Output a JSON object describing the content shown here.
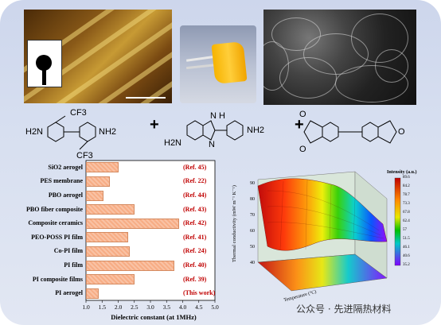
{
  "chemistry": {
    "monomer1": {
      "top": "CF3",
      "bottom": "CF3",
      "left": "H2N",
      "right": "NH2"
    },
    "monomer2": {
      "left": "H2N",
      "right": "NH2",
      "nh": "N\nH",
      "n": "N"
    },
    "monomer3": {
      "o": "O"
    }
  },
  "chart_data": {
    "type": "bar",
    "orientation": "horizontal",
    "categories": [
      "SiO2 aerogel",
      "PES membrane",
      "PBO aerogel",
      "PBO fiber composite",
      "Composite ceramics",
      "PEO-POSS PI film",
      "Co-PI film",
      "PI film",
      "PI composite films",
      "PI aerogel"
    ],
    "values": [
      2.0,
      1.75,
      1.55,
      2.5,
      3.9,
      2.3,
      2.35,
      3.75,
      2.5,
      1.4
    ],
    "annotations": [
      "(Ref. 45)",
      "(Ref. 22)",
      "(Ref. 44)",
      "(Ref. 43)",
      "(Ref. 42)",
      "(Ref. 41)",
      "(Ref. 24)",
      "(Ref. 40)",
      "(Ref. 39)",
      "(This work)"
    ],
    "xlabel": "Dielectric constant (at 1MHz)",
    "xlim": [
      1.0,
      5.0
    ],
    "xticks": [
      "1.0",
      "1.5",
      "2.0",
      "2.5",
      "3.0",
      "3.5",
      "4.0",
      "4.5",
      "5.0"
    ],
    "bar_color": "#f7ad85",
    "annotation_color": "#c00000"
  },
  "surface_plot": {
    "zlabel": "Thermal conductivity (mW m⁻¹ K⁻¹)",
    "xlabel": "Temperature (°C)",
    "colorbar_title": "Intensity (a.u.)",
    "colorbar_ticks": [
      "89.6",
      "84.2",
      "78.7",
      "73.3",
      "67.8",
      "62.4",
      "57",
      "51.5",
      "46.1",
      "40.6",
      "35.2"
    ],
    "z_ticks": [
      "90",
      "80",
      "70",
      "60",
      "50",
      "40"
    ],
    "colors": [
      "#c00000",
      "#ff0000",
      "#ff8c00",
      "#ffff00",
      "#00c000",
      "#00ffff",
      "#0000ff",
      "#7f00ff"
    ]
  },
  "watermark": "公众号 · 先进隔热材料"
}
